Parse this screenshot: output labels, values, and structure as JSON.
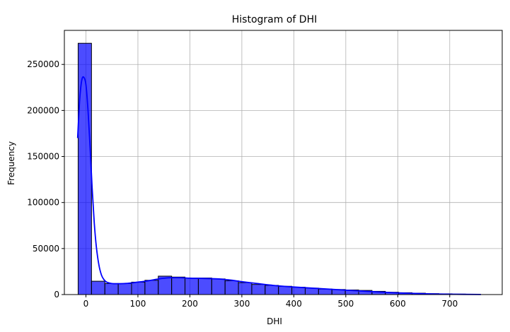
{
  "chart_data": {
    "type": "bar",
    "title": "Histogram of DHI",
    "xlabel": "DHI",
    "ylabel": "Frequency",
    "xlim": [
      -41.5,
      801
    ],
    "ylim": [
      0,
      287000
    ],
    "grid": true,
    "bar_color": "#0000ff",
    "bar_opacity": 0.7,
    "kde_color": "#0000ff",
    "x_ticks": [
      0,
      100,
      200,
      300,
      400,
      500,
      600,
      700
    ],
    "y_ticks": [
      0,
      50000,
      100000,
      150000,
      200000,
      250000
    ],
    "bin_edges": [
      -15.0,
      10.7,
      36.4,
      62.1,
      87.8,
      113.5,
      139.2,
      164.9,
      190.6,
      216.3,
      242.0,
      267.7,
      293.4,
      319.1,
      344.8,
      370.5,
      396.2,
      421.9,
      447.6,
      473.3,
      499.0,
      524.7,
      550.4,
      576.1,
      601.8,
      627.5,
      653.2,
      678.9,
      704.6,
      730.3,
      756.0
    ],
    "values": [
      273000,
      14500,
      12000,
      12000,
      13500,
      15500,
      20000,
      19000,
      18000,
      18000,
      17000,
      15000,
      13000,
      11000,
      10000,
      9000,
      8000,
      7000,
      6000,
      5500,
      5000,
      4500,
      3500,
      2500,
      2000,
      1500,
      1000,
      800,
      500,
      300
    ],
    "kde_x": [
      -16,
      -12,
      -8,
      -4,
      0,
      4,
      8,
      12,
      16,
      20,
      25,
      30,
      35,
      40,
      50,
      60,
      80,
      100,
      120,
      140,
      160,
      180,
      200,
      220,
      240,
      260,
      280,
      300,
      330,
      360,
      400,
      450,
      500,
      550,
      600,
      650,
      700,
      760
    ],
    "kde_y": [
      170000,
      212000,
      233000,
      236000,
      228000,
      200000,
      160000,
      115000,
      78000,
      52000,
      32000,
      21000,
      16000,
      13500,
      12000,
      11800,
      12200,
      13500,
      15000,
      17000,
      18200,
      18300,
      17800,
      17600,
      17300,
      16800,
      15600,
      14000,
      12000,
      10000,
      8200,
      6500,
      4800,
      3200,
      1800,
      900,
      400,
      100
    ]
  }
}
